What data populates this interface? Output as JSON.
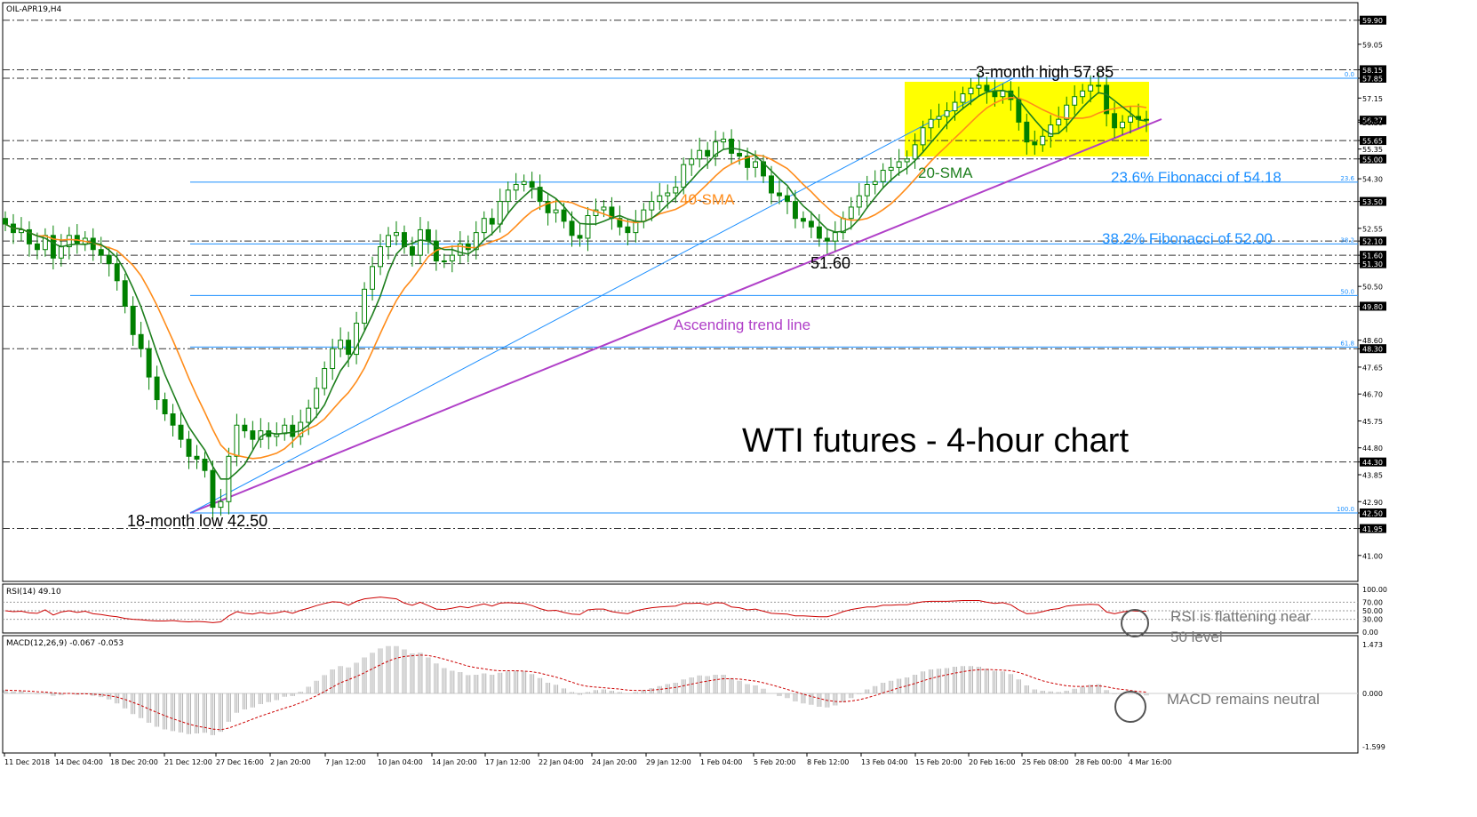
{
  "chart_data": {
    "type": "candlestick",
    "symbol_label": "OIL-APR19,H4",
    "title": "WTI futures - 4-hour chart",
    "price_axis": {
      "ylim": [
        40.2,
        60.4
      ],
      "labels": [
        "59.90",
        "59.05",
        "58.15",
        "57.85",
        "57.15",
        "56.37",
        "56.30",
        "55.65",
        "55.35",
        "55.00",
        "54.30",
        "53.50",
        "52.55",
        "52.10",
        "51.60",
        "51.30",
        "50.50",
        "49.80",
        "48.60",
        "48.30",
        "47.65",
        "46.70",
        "45.75",
        "44.80",
        "44.30",
        "43.85",
        "42.90",
        "42.50",
        "41.95",
        "41.00"
      ]
    },
    "levels": [
      {
        "value": 59.9,
        "style": "dash-dot"
      },
      {
        "value": 58.15,
        "style": "dash-dot"
      },
      {
        "value": 57.85,
        "style": "dash-dot"
      },
      {
        "value": 55.65,
        "style": "dash-dot"
      },
      {
        "value": 55.0,
        "style": "dash-dot"
      },
      {
        "value": 53.5,
        "style": "dash-dot"
      },
      {
        "value": 52.1,
        "style": "dash-dot"
      },
      {
        "value": 51.6,
        "style": "dash-dot"
      },
      {
        "value": 51.3,
        "style": "dash-dot"
      },
      {
        "value": 49.8,
        "style": "dash-dot"
      },
      {
        "value": 48.3,
        "style": "dash-dot"
      },
      {
        "value": 44.3,
        "style": "dash-dot"
      },
      {
        "value": 41.95,
        "style": "dash-dot"
      }
    ],
    "fibonacci": [
      {
        "value": 57.85,
        "label": "0.0"
      },
      {
        "value": 54.18,
        "label": "23.6"
      },
      {
        "value": 52.0,
        "label": "38.2"
      },
      {
        "value": 50.18,
        "label": "50.0"
      },
      {
        "value": 48.36,
        "label": "61.8"
      },
      {
        "value": 42.5,
        "label": "100.0"
      }
    ],
    "time_labels": [
      "11 Dec 2018",
      "14 Dec 04:00",
      "18 Dec 20:00",
      "21 Dec 12:00",
      "27 Dec 16:00",
      "2 Jan 20:00",
      "7 Jan 12:00",
      "10 Jan 04:00",
      "14 Jan 20:00",
      "17 Jan 12:00",
      "22 Jan 04:00",
      "24 Jan 20:00",
      "29 Jan 12:00",
      "1 Feb 04:00",
      "5 Feb 20:00",
      "8 Feb 12:00",
      "13 Feb 04:00",
      "15 Feb 20:00",
      "20 Feb 16:00",
      "25 Feb 08:00",
      "28 Feb 00:00",
      "4 Mar 16:00"
    ],
    "closes": [
      52.7,
      52.4,
      52.5,
      52.0,
      51.8,
      52.3,
      51.5,
      51.9,
      52.3,
      52.0,
      52.2,
      51.8,
      51.6,
      51.3,
      50.7,
      49.8,
      48.8,
      48.3,
      47.3,
      46.5,
      46.0,
      45.6,
      45.1,
      44.5,
      44.4,
      44.0,
      42.7,
      42.9,
      44.5,
      45.6,
      45.4,
      45.1,
      45.4,
      45.2,
      45.3,
      45.6,
      45.2,
      45.7,
      46.2,
      46.9,
      47.6,
      48.3,
      48.6,
      48.1,
      49.2,
      50.4,
      51.2,
      51.9,
      52.3,
      52.4,
      51.9,
      51.6,
      52.5,
      52.1,
      51.4,
      51.4,
      51.6,
      52.0,
      51.8,
      52.4,
      52.9,
      52.7,
      53.5,
      53.9,
      54.1,
      54.2,
      54.0,
      53.5,
      53.1,
      53.2,
      52.8,
      52.3,
      52.2,
      53.0,
      53.2,
      53.3,
      52.9,
      52.6,
      52.4,
      52.8,
      53.2,
      53.5,
      53.7,
      53.8,
      54.0,
      54.8,
      55.0,
      55.3,
      55.1,
      55.6,
      55.7,
      55.2,
      55.1,
      54.7,
      54.9,
      54.4,
      53.8,
      53.7,
      53.5,
      52.9,
      52.8,
      52.6,
      52.2,
      52.1,
      52.4,
      52.9,
      53.3,
      53.7,
      54.1,
      54.2,
      54.6,
      54.7,
      54.9,
      55.0,
      55.5,
      56.1,
      56.4,
      56.5,
      56.7,
      57.0,
      57.3,
      57.5,
      57.6,
      57.4,
      57.2,
      57.4,
      57.1,
      56.3,
      55.6,
      55.5,
      55.8,
      56.2,
      56.4,
      56.9,
      57.2,
      57.4,
      57.6,
      57.6,
      56.6,
      56.1,
      56.3,
      56.5,
      56.4,
      56.4
    ],
    "rsi": {
      "label": "RSI(14) 49.10",
      "ylim": [
        0,
        100
      ],
      "labels": [
        "100.00",
        "70.00",
        "50.00",
        "30.00",
        "0.00"
      ],
      "levels": [
        70,
        50,
        30
      ],
      "values": [
        50,
        48,
        49,
        45,
        44,
        52,
        40,
        47,
        50,
        46,
        49,
        43,
        41,
        38,
        36,
        32,
        30,
        29,
        27,
        26,
        26,
        27,
        25,
        24,
        25,
        24,
        22,
        24,
        38,
        48,
        44,
        42,
        46,
        43,
        45,
        49,
        44,
        51,
        56,
        62,
        67,
        71,
        70,
        63,
        72,
        78,
        80,
        82,
        80,
        78,
        68,
        63,
        70,
        62,
        54,
        53,
        56,
        60,
        57,
        62,
        66,
        61,
        68,
        69,
        68,
        67,
        62,
        55,
        50,
        51,
        46,
        42,
        41,
        52,
        54,
        54,
        48,
        45,
        43,
        50,
        54,
        57,
        59,
        60,
        61,
        67,
        67,
        68,
        64,
        69,
        68,
        59,
        57,
        52,
        54,
        49,
        44,
        43,
        42,
        38,
        38,
        37,
        36,
        36,
        41,
        48,
        53,
        56,
        59,
        59,
        63,
        63,
        64,
        64,
        68,
        71,
        72,
        72,
        72,
        73,
        74,
        74,
        74,
        70,
        67,
        69,
        64,
        52,
        43,
        44,
        48,
        53,
        55,
        61,
        63,
        64,
        65,
        64,
        47,
        43,
        47,
        50,
        49,
        49
      ]
    },
    "macd": {
      "label": "MACD(12,26,9) -0.067 -0.053",
      "ylim": [
        -1.6,
        1.6
      ],
      "labels": [
        "1.473",
        "0.000",
        "-1.599"
      ],
      "hist": [
        0.1,
        0.06,
        0.07,
        0.02,
        -0.02,
        0.02,
        -0.07,
        -0.05,
        0.0,
        -0.04,
        -0.02,
        -0.07,
        -0.11,
        -0.18,
        -0.3,
        -0.45,
        -0.62,
        -0.74,
        -0.88,
        -1.0,
        -1.08,
        -1.13,
        -1.17,
        -1.22,
        -1.2,
        -1.18,
        -1.25,
        -1.15,
        -0.85,
        -0.58,
        -0.48,
        -0.42,
        -0.32,
        -0.26,
        -0.2,
        -0.1,
        -0.08,
        0.05,
        0.2,
        0.38,
        0.55,
        0.72,
        0.82,
        0.78,
        0.92,
        1.08,
        1.22,
        1.35,
        1.42,
        1.42,
        1.32,
        1.2,
        1.22,
        1.08,
        0.9,
        0.76,
        0.68,
        0.64,
        0.55,
        0.56,
        0.6,
        0.56,
        0.62,
        0.66,
        0.68,
        0.66,
        0.58,
        0.46,
        0.32,
        0.26,
        0.15,
        0.04,
        -0.04,
        0.04,
        0.1,
        0.12,
        0.08,
        0.04,
        0.0,
        0.04,
        0.1,
        0.16,
        0.22,
        0.28,
        0.32,
        0.42,
        0.48,
        0.54,
        0.52,
        0.56,
        0.56,
        0.46,
        0.38,
        0.28,
        0.24,
        0.14,
        0.0,
        -0.08,
        -0.14,
        -0.24,
        -0.3,
        -0.34,
        -0.4,
        -0.42,
        -0.36,
        -0.26,
        -0.14,
        -0.02,
        0.12,
        0.22,
        0.32,
        0.38,
        0.44,
        0.48,
        0.56,
        0.66,
        0.72,
        0.74,
        0.76,
        0.8,
        0.82,
        0.82,
        0.8,
        0.74,
        0.68,
        0.66,
        0.58,
        0.42,
        0.24,
        0.12,
        0.08,
        0.06,
        0.04,
        0.08,
        0.14,
        0.2,
        0.26,
        0.28,
        0.1,
        -0.02,
        -0.02,
        -0.02,
        -0.04,
        -0.06
      ],
      "signal": [
        0.1,
        0.09,
        0.08,
        0.07,
        0.05,
        0.04,
        0.02,
        0.0,
        0.0,
        -0.01,
        -0.01,
        -0.02,
        -0.04,
        -0.07,
        -0.11,
        -0.18,
        -0.27,
        -0.36,
        -0.47,
        -0.57,
        -0.67,
        -0.76,
        -0.84,
        -0.92,
        -0.98,
        -1.02,
        -1.07,
        -1.09,
        -1.04,
        -0.95,
        -0.86,
        -0.77,
        -0.68,
        -0.6,
        -0.52,
        -0.44,
        -0.37,
        -0.28,
        -0.18,
        -0.07,
        0.06,
        0.19,
        0.32,
        0.41,
        0.51,
        0.62,
        0.74,
        0.86,
        0.97,
        1.06,
        1.11,
        1.13,
        1.15,
        1.14,
        1.09,
        1.03,
        0.96,
        0.89,
        0.82,
        0.77,
        0.74,
        0.7,
        0.68,
        0.68,
        0.68,
        0.67,
        0.65,
        0.61,
        0.55,
        0.49,
        0.42,
        0.34,
        0.26,
        0.21,
        0.19,
        0.17,
        0.15,
        0.13,
        0.1,
        0.09,
        0.09,
        0.1,
        0.12,
        0.15,
        0.18,
        0.23,
        0.28,
        0.33,
        0.37,
        0.41,
        0.44,
        0.44,
        0.43,
        0.4,
        0.37,
        0.32,
        0.26,
        0.19,
        0.12,
        0.05,
        -0.02,
        -0.09,
        -0.15,
        -0.21,
        -0.24,
        -0.25,
        -0.23,
        -0.19,
        -0.13,
        -0.06,
        0.02,
        0.09,
        0.17,
        0.23,
        0.3,
        0.38,
        0.45,
        0.51,
        0.56,
        0.61,
        0.65,
        0.69,
        0.71,
        0.72,
        0.71,
        0.7,
        0.68,
        0.63,
        0.55,
        0.46,
        0.38,
        0.32,
        0.27,
        0.23,
        0.21,
        0.21,
        0.22,
        0.23,
        0.2,
        0.15,
        0.12,
        0.09,
        0.06,
        0.04
      ]
    },
    "annotations": {
      "high": "3-month high 57.85",
      "low": "18-month low 42.50",
      "swing_low": "51.60",
      "sma20": "20-SMA",
      "sma40": "40-SMA",
      "fib236": "23.6% Fibonacci of 54.18",
      "fib382": "38.2% Fibonacci of 52.00",
      "trendline": "Ascending trend line",
      "rsi_note_1": "RSI is flattening near",
      "rsi_note_2": "50 level",
      "macd_note": "MACD remains neutral"
    },
    "colors": {
      "candle": "#008000",
      "sma20": "#1e7f1e",
      "sma40": "#ff8c1a",
      "fib": "#1e90ff",
      "trendline": "#b040c8",
      "indicator": "#cc0000",
      "range_box": "#ffff00",
      "macd_hist": "#b0b0b0"
    }
  }
}
